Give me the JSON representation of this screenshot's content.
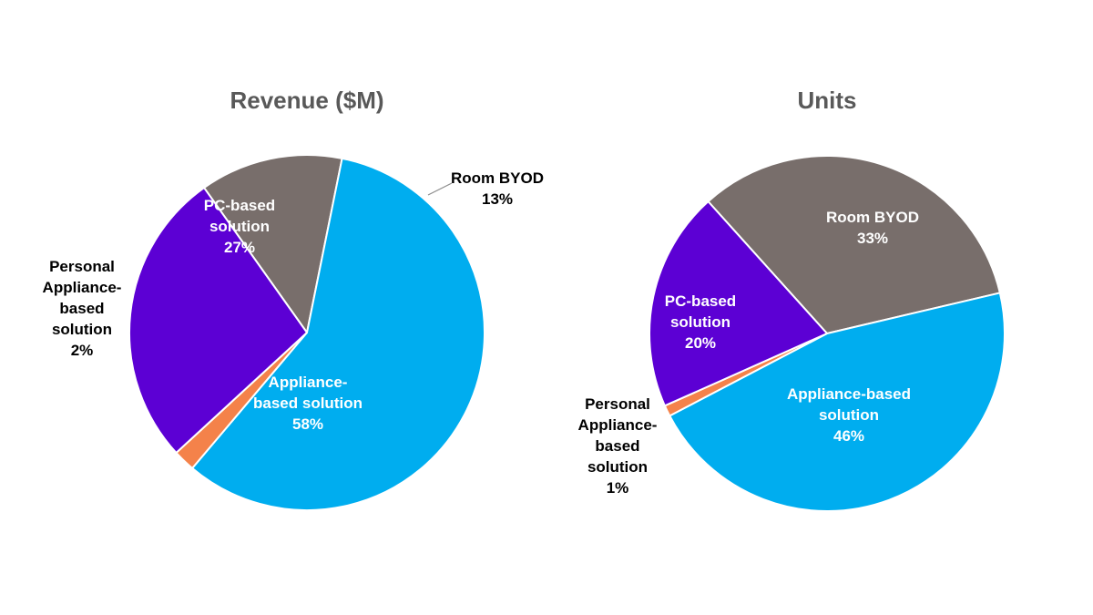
{
  "chart_data": [
    {
      "type": "pie",
      "title": "Revenue ($M)",
      "slices": [
        {
          "name": "Room BYOD",
          "label_lines": [
            "Room BYOD"
          ],
          "value": 13,
          "display": "13%",
          "color": "#786E6B"
        },
        {
          "name": "Appliance-based solution",
          "label_lines": [
            "Appliance-",
            "based solution"
          ],
          "value": 58,
          "display": "58%",
          "color": "#00ADEF"
        },
        {
          "name": "Personal Appliance-based solution",
          "label_lines": [
            "Personal",
            "Appliance-",
            "based",
            "solution"
          ],
          "value": 2,
          "display": "2%",
          "color": "#F4824A"
        },
        {
          "name": "PC-based solution",
          "label_lines": [
            "PC-based",
            "solution"
          ],
          "value": 27,
          "display": "27%",
          "color": "#5C00D4"
        }
      ]
    },
    {
      "type": "pie",
      "title": "Units",
      "slices": [
        {
          "name": "Room BYOD",
          "label_lines": [
            "Room BYOD"
          ],
          "value": 33,
          "display": "33%",
          "color": "#786E6B"
        },
        {
          "name": "Appliance-based solution",
          "label_lines": [
            "Appliance-based",
            "solution"
          ],
          "value": 46,
          "display": "46%",
          "color": "#00ADEF"
        },
        {
          "name": "Personal Appliance-based solution",
          "label_lines": [
            "Personal",
            "Appliance-",
            "based",
            "solution"
          ],
          "value": 1,
          "display": "1%",
          "color": "#F4824A"
        },
        {
          "name": "PC-based solution",
          "label_lines": [
            "PC-based",
            "solution"
          ],
          "value": 20,
          "display": "20%",
          "color": "#5C00D4"
        }
      ]
    }
  ]
}
